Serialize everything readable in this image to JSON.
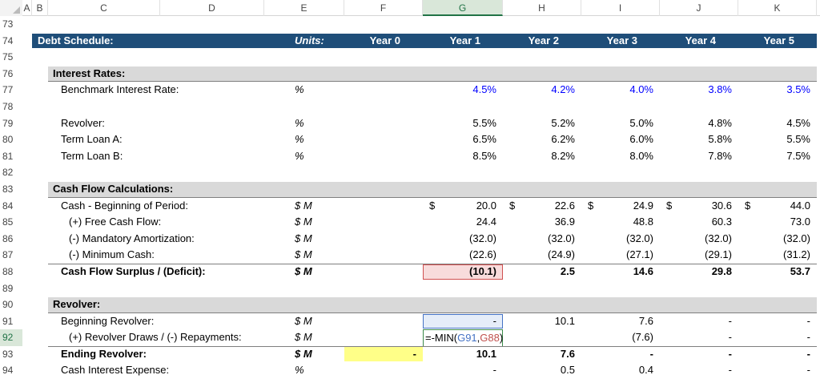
{
  "columns": [
    "A",
    "B",
    "C",
    "D",
    "E",
    "F",
    "G",
    "H",
    "I",
    "J",
    "K"
  ],
  "selected_column": "G",
  "selected_row": 92,
  "colors": {
    "header_bg": "#1f4e79",
    "section_bg": "#d9d9d9",
    "input_blue": "#0000ff",
    "highlight_yellow": "#ffff88"
  },
  "rows": [
    {
      "num": 73,
      "type": "empty"
    },
    {
      "num": 74,
      "type": "hdr",
      "label": "Debt Schedule:",
      "units": "Units:",
      "values": [
        "Year 0",
        "Year 1",
        "Year 2",
        "Year 3",
        "Year 4",
        "Year 5"
      ]
    },
    {
      "num": 75,
      "type": "empty"
    },
    {
      "num": 76,
      "type": "sec",
      "label": "Interest Rates:"
    },
    {
      "num": 77,
      "label": "Benchmark Interest Rate:",
      "units": "%",
      "blue": true,
      "values": [
        "",
        "4.5%",
        "4.2%",
        "4.0%",
        "3.8%",
        "3.5%"
      ]
    },
    {
      "num": 78,
      "type": "empty"
    },
    {
      "num": 79,
      "label": "Revolver:",
      "units": "%",
      "values": [
        "",
        "5.5%",
        "5.2%",
        "5.0%",
        "4.8%",
        "4.5%"
      ]
    },
    {
      "num": 80,
      "label": "Term Loan A:",
      "units": "%",
      "values": [
        "",
        "6.5%",
        "6.2%",
        "6.0%",
        "5.8%",
        "5.5%"
      ]
    },
    {
      "num": 81,
      "label": "Term Loan B:",
      "units": "%",
      "values": [
        "",
        "8.5%",
        "8.2%",
        "8.0%",
        "7.8%",
        "7.5%"
      ]
    },
    {
      "num": 82,
      "type": "empty"
    },
    {
      "num": 83,
      "type": "sec",
      "label": "Cash Flow Calculations:"
    },
    {
      "num": 84,
      "label": "Cash - Beginning of Period:",
      "units": "$ M",
      "currency": "$",
      "values": [
        "",
        "20.0",
        "22.6",
        "24.9",
        "30.6",
        "44.0"
      ]
    },
    {
      "num": 85,
      "label": "(+) Free Cash Flow:",
      "indent": 2,
      "units": "$ M",
      "values": [
        "",
        "24.4",
        "36.9",
        "48.8",
        "60.3",
        "73.0"
      ]
    },
    {
      "num": 86,
      "label": "(-) Mandatory Amortization:",
      "indent": 2,
      "units": "$ M",
      "values": [
        "",
        "(32.0)",
        "(32.0)",
        "(32.0)",
        "(32.0)",
        "(32.0)"
      ]
    },
    {
      "num": 87,
      "label": "(-) Minimum Cash:",
      "indent": 2,
      "units": "$ M",
      "values": [
        "",
        "(22.6)",
        "(24.9)",
        "(27.1)",
        "(29.1)",
        "(31.2)"
      ]
    },
    {
      "num": 88,
      "type": "bold",
      "topb": true,
      "label": "Cash Flow Surplus / (Deficit):",
      "units": "$ M",
      "values": [
        "",
        "(10.1)",
        "2.5",
        "14.6",
        "29.8",
        "53.7"
      ],
      "boxes": {
        "1": "box-red"
      }
    },
    {
      "num": 89,
      "type": "empty"
    },
    {
      "num": 90,
      "type": "sec",
      "label": "Revolver:"
    },
    {
      "num": 91,
      "label": "Beginning Revolver:",
      "units": "$ M",
      "values": [
        "",
        "-",
        "10.1",
        "7.6",
        "-",
        "-"
      ],
      "boxes": {
        "1": "box-blue"
      }
    },
    {
      "num": 92,
      "label": "(+) Revolver Draws / (-) Repayments:",
      "indent": 2,
      "units": "$ M",
      "values": [
        "",
        "",
        "",
        "(7.6)",
        "-",
        "-"
      ],
      "formula": {
        "prefix": "=-MIN(",
        "ref1": "G91",
        "sep": ",",
        "ref2": "G88",
        "suffix": ")"
      }
    },
    {
      "num": 93,
      "type": "bold",
      "topb": true,
      "label": "Ending Revolver:",
      "units": "$ M",
      "values": [
        "-",
        "10.1",
        "7.6",
        "-",
        "-",
        "-"
      ],
      "boxes": {
        "0": "box-yel"
      }
    },
    {
      "num": 94,
      "label": "Cash Interest Expense:",
      "units": "%",
      "values": [
        "",
        "-",
        "0.5",
        "0.4",
        "-",
        "-"
      ]
    }
  ]
}
